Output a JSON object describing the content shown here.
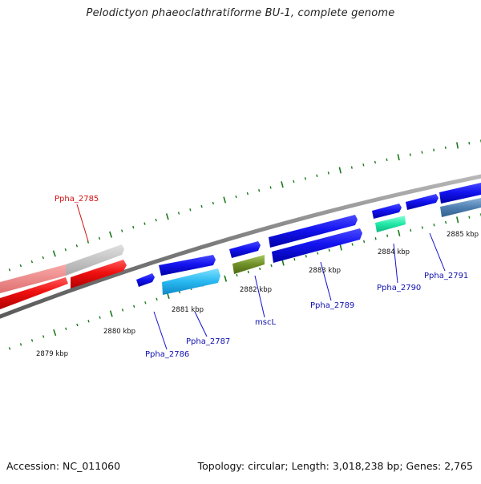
{
  "title": "Pelodictyon phaeoclathratiforme BU-1, complete genome",
  "footer": {
    "accession": "Accession: NC_011060",
    "summary": "Topology: circular; Length: 3,018,238 bp; Genes: 2,765"
  },
  "colors": {
    "backbone": "#8c8c8c",
    "tick": "#1a7a1a",
    "label_blue": "#1010b0",
    "label_red": "#d01010",
    "leader_blue": "#1010d0",
    "leader_red": "#d01010"
  },
  "kbp_labels": [
    {
      "text": "2879 kbp"
    },
    {
      "text": "2880 kbp"
    },
    {
      "text": "2881 kbp"
    },
    {
      "text": "2882 kbp"
    },
    {
      "text": "2883 kbp"
    },
    {
      "text": "2884 kbp"
    },
    {
      "text": "2885 kbp"
    }
  ],
  "genes": [
    {
      "label": "Ppha_2785",
      "label_color": "red"
    },
    {
      "label": "Ppha_2786",
      "label_color": "blue"
    },
    {
      "label": "Ppha_2787",
      "label_color": "blue"
    },
    {
      "label": "mscL",
      "label_color": "blue"
    },
    {
      "label": "Ppha_2789",
      "label_color": "blue"
    },
    {
      "label": "Ppha_2790",
      "label_color": "blue"
    },
    {
      "label": "Ppha_2791",
      "label_color": "blue"
    }
  ]
}
